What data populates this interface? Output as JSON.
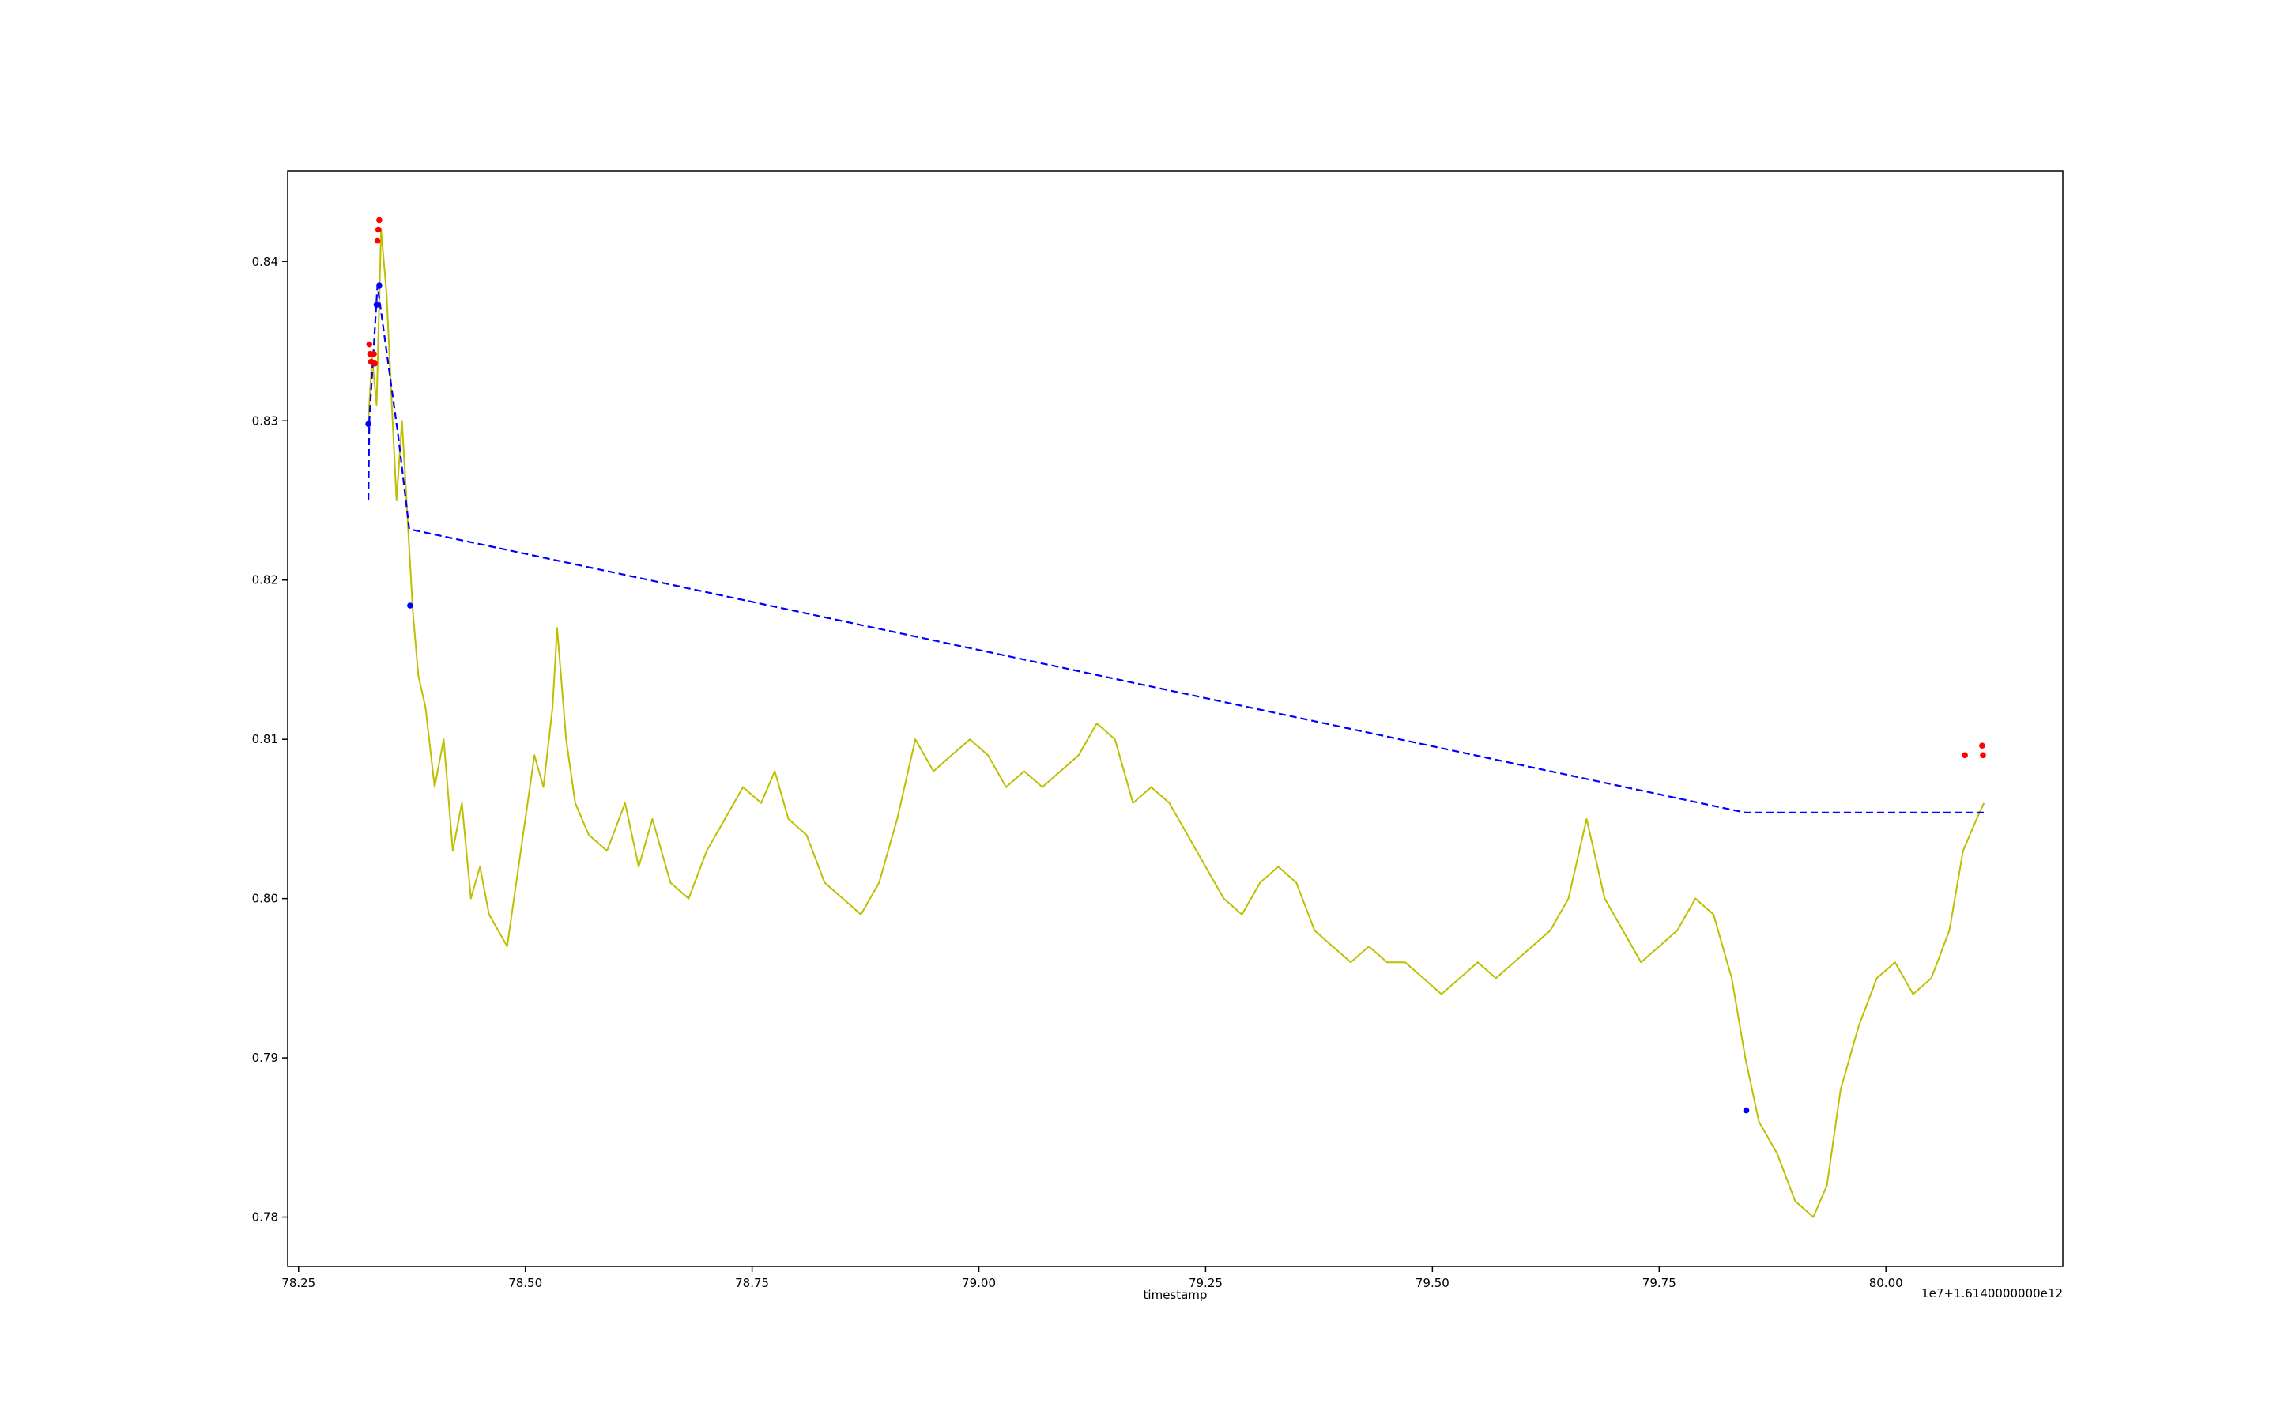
{
  "chart_data": {
    "type": "line",
    "title": "",
    "xlabel": "timestamp",
    "ylabel": "",
    "x_offset_text": "1e7+1.6140000000e12",
    "xlim": [
      78.238,
      80.195
    ],
    "ylim": [
      0.7769,
      0.8457
    ],
    "x_ticks": [
      78.25,
      78.5,
      78.75,
      79.0,
      79.25,
      79.5,
      79.75,
      80.0
    ],
    "x_tick_labels": [
      "78.25",
      "78.50",
      "78.75",
      "79.00",
      "79.25",
      "79.50",
      "79.75",
      "80.00"
    ],
    "y_ticks": [
      0.78,
      0.79,
      0.8,
      0.81,
      0.82,
      0.83,
      0.84
    ],
    "y_tick_labels": [
      "0.78",
      "0.79",
      "0.80",
      "0.81",
      "0.82",
      "0.83",
      "0.84"
    ],
    "grid": false,
    "legend": "none",
    "colors": {
      "price": "#bfbf00",
      "trend": "#0000ff",
      "sell_markers": "#ff0000",
      "buy_markers": "#0000ff"
    },
    "series": [
      {
        "style": "solid",
        "color": "#bfbf00",
        "x": [
          78.327,
          78.331,
          78.336,
          78.341,
          78.347,
          78.352,
          78.358,
          78.364,
          78.37,
          78.376,
          78.382,
          78.39,
          78.4,
          78.41,
          78.42,
          78.43,
          78.44,
          78.45,
          78.46,
          78.47,
          78.48,
          78.49,
          78.5,
          78.51,
          78.52,
          78.53,
          78.535,
          78.545,
          78.555,
          78.57,
          78.59,
          78.61,
          78.625,
          78.64,
          78.66,
          78.68,
          78.7,
          78.72,
          78.74,
          78.76,
          78.775,
          78.79,
          78.81,
          78.83,
          78.85,
          78.87,
          78.89,
          78.91,
          78.93,
          78.95,
          78.97,
          78.99,
          79.01,
          79.03,
          79.05,
          79.07,
          79.09,
          79.11,
          79.13,
          79.15,
          79.17,
          79.19,
          79.21,
          79.23,
          79.25,
          79.27,
          79.29,
          79.31,
          79.33,
          79.35,
          79.37,
          79.39,
          79.41,
          79.43,
          79.45,
          79.47,
          79.49,
          79.51,
          79.53,
          79.55,
          79.57,
          79.59,
          79.61,
          79.63,
          79.65,
          79.67,
          79.69,
          79.71,
          79.73,
          79.75,
          79.77,
          79.79,
          79.81,
          79.83,
          79.845,
          79.86,
          79.88,
          79.9,
          79.92,
          79.935,
          79.95,
          79.97,
          79.99,
          80.01,
          80.03,
          80.05,
          80.07,
          80.085,
          80.1,
          80.108
        ],
        "y": [
          0.83,
          0.834,
          0.831,
          0.842,
          0.838,
          0.832,
          0.825,
          0.83,
          0.824,
          0.818,
          0.814,
          0.812,
          0.807,
          0.81,
          0.803,
          0.806,
          0.8,
          0.802,
          0.799,
          0.798,
          0.797,
          0.801,
          0.805,
          0.809,
          0.807,
          0.812,
          0.817,
          0.81,
          0.806,
          0.804,
          0.803,
          0.806,
          0.802,
          0.805,
          0.801,
          0.8,
          0.803,
          0.805,
          0.807,
          0.806,
          0.808,
          0.805,
          0.804,
          0.801,
          0.8,
          0.799,
          0.801,
          0.805,
          0.81,
          0.808,
          0.809,
          0.81,
          0.809,
          0.807,
          0.808,
          0.807,
          0.808,
          0.809,
          0.811,
          0.81,
          0.806,
          0.807,
          0.806,
          0.804,
          0.802,
          0.8,
          0.799,
          0.801,
          0.802,
          0.801,
          0.798,
          0.797,
          0.796,
          0.797,
          0.796,
          0.796,
          0.795,
          0.794,
          0.795,
          0.796,
          0.795,
          0.796,
          0.797,
          0.798,
          0.8,
          0.805,
          0.8,
          0.798,
          0.796,
          0.797,
          0.798,
          0.8,
          0.799,
          0.795,
          0.79,
          0.786,
          0.784,
          0.781,
          0.78,
          0.782,
          0.788,
          0.792,
          0.795,
          0.796,
          0.794,
          0.795,
          0.798,
          0.803,
          0.805,
          0.806
        ]
      },
      {
        "style": "dashed",
        "color": "#0000ff",
        "x": [
          78.327,
          78.328,
          78.337,
          78.36,
          78.372,
          79.845,
          80.108
        ],
        "y": [
          0.825,
          0.83,
          0.8385,
          0.829,
          0.8232,
          0.8054,
          0.8054
        ]
      }
    ],
    "markers": [
      {
        "color": "#ff0000",
        "x": 78.328,
        "y": 0.8348
      },
      {
        "color": "#ff0000",
        "x": 78.329,
        "y": 0.8342
      },
      {
        "color": "#ff0000",
        "x": 78.33,
        "y": 0.8337
      },
      {
        "color": "#ff0000",
        "x": 78.333,
        "y": 0.8342
      },
      {
        "color": "#ff0000",
        "x": 78.334,
        "y": 0.8336
      },
      {
        "color": "#ff0000",
        "x": 78.337,
        "y": 0.8413
      },
      {
        "color": "#ff0000",
        "x": 78.338,
        "y": 0.842
      },
      {
        "color": "#ff0000",
        "x": 78.339,
        "y": 0.8426
      },
      {
        "color": "#ff0000",
        "x": 80.087,
        "y": 0.809
      },
      {
        "color": "#ff0000",
        "x": 80.106,
        "y": 0.8096
      },
      {
        "color": "#ff0000",
        "x": 80.107,
        "y": 0.809
      },
      {
        "color": "#0000ff",
        "x": 78.327,
        "y": 0.8298
      },
      {
        "color": "#0000ff",
        "x": 78.336,
        "y": 0.8373
      },
      {
        "color": "#0000ff",
        "x": 78.339,
        "y": 0.8385
      },
      {
        "color": "#0000ff",
        "x": 78.373,
        "y": 0.8184
      },
      {
        "color": "#0000ff",
        "x": 79.846,
        "y": 0.7867
      }
    ]
  }
}
